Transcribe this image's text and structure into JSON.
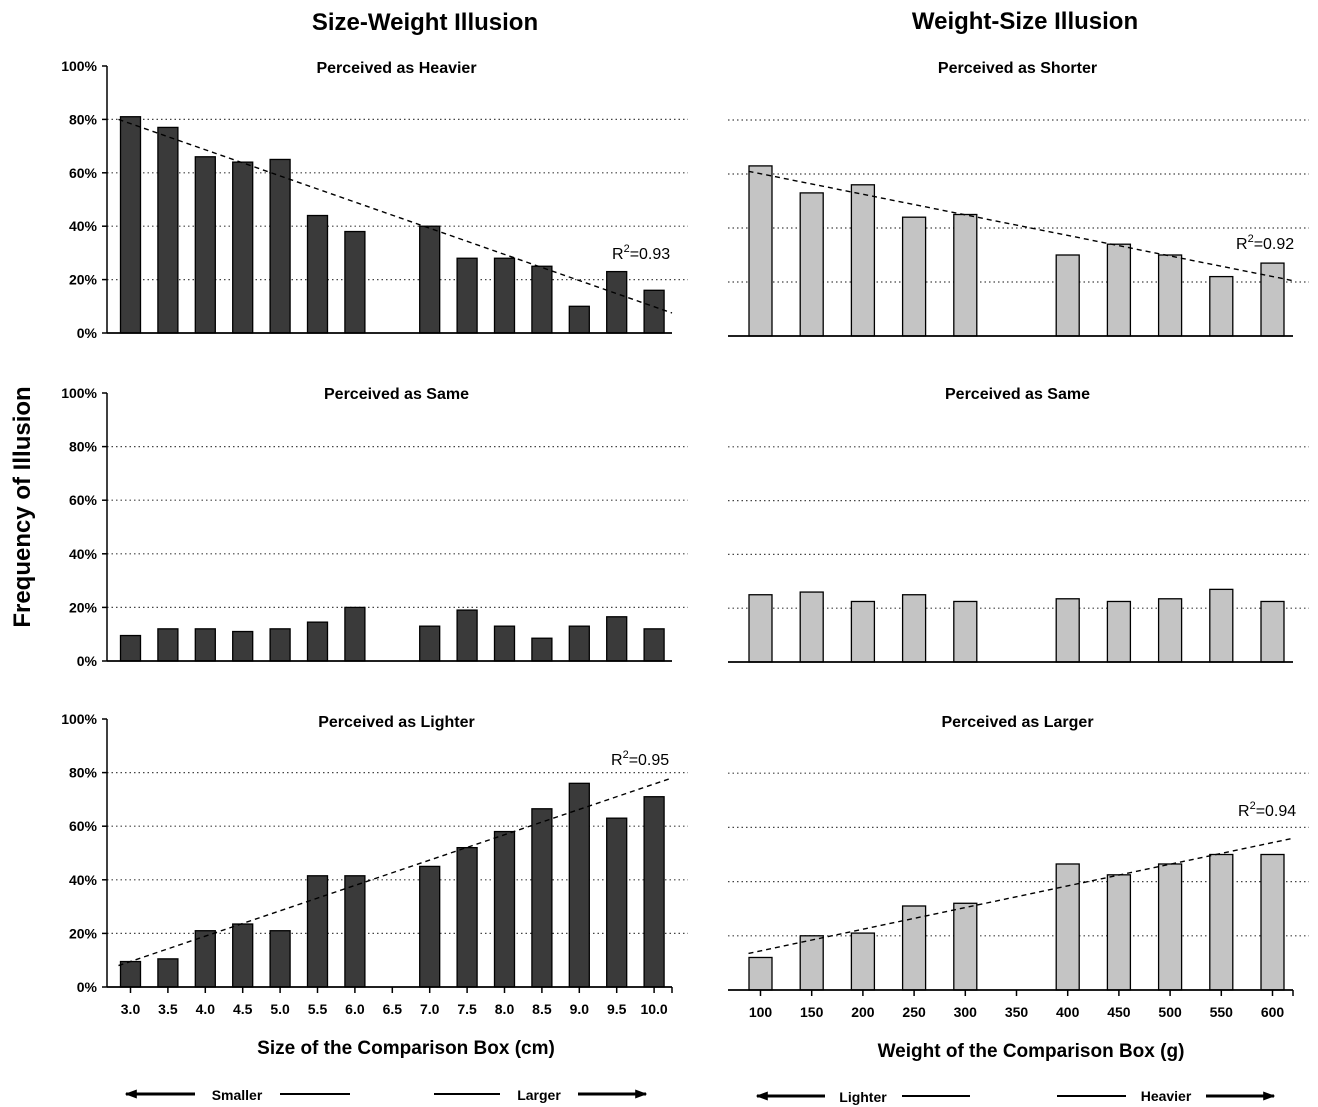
{
  "figure": {
    "ylabel": "Frequency of Illusion",
    "columns": [
      {
        "title": "Size-Weight Illusion",
        "xlabel": "Size of the Comparison Box (cm)",
        "arrow_left_label": "Smaller",
        "arrow_right_label": "Larger"
      },
      {
        "title": "Weight-Size Illusion",
        "xlabel": "Weight of the Comparison Box (g)",
        "arrow_left_label": "Lighter",
        "arrow_right_label": "Heavier"
      }
    ],
    "colors": {
      "dark_bar": "#3a3a3a",
      "light_bar": "#c4c4c4",
      "bar_stroke": "#000000"
    }
  },
  "chart_data": [
    {
      "type": "bar",
      "title": "Perceived as Heavier",
      "categories": [
        "3.0",
        "3.5",
        "4.0",
        "4.5",
        "5.0",
        "5.5",
        "6.0",
        "6.5",
        "7.0",
        "7.5",
        "8.0",
        "8.5",
        "9.0",
        "9.5",
        "10.0"
      ],
      "values": [
        81,
        77,
        66,
        64,
        65,
        44,
        38,
        null,
        40,
        28,
        28,
        25,
        10,
        23,
        16
      ],
      "ylim": [
        0,
        100
      ],
      "yticks": [
        "0%",
        "20%",
        "40%",
        "60%",
        "80%",
        "100%"
      ],
      "trend": {
        "start": 80,
        "end": 7.5,
        "r2_label": "R",
        "r2_value": "=0.93"
      },
      "grid": true,
      "bar_color": "dark"
    },
    {
      "type": "bar",
      "title": "Perceived as Shorter",
      "categories": [
        "100",
        "150",
        "200",
        "250",
        "300",
        "350",
        "400",
        "450",
        "500",
        "550",
        "600"
      ],
      "values": [
        63,
        53,
        56,
        44,
        45,
        null,
        30,
        34,
        30,
        22,
        27
      ],
      "ylim": [
        0,
        100
      ],
      "yticks": [],
      "trend": {
        "start": 61,
        "end": 20.5,
        "r2_label": "R",
        "r2_value": "=0.92"
      },
      "grid": true,
      "bar_color": "light"
    },
    {
      "type": "bar",
      "title": "Perceived as Same",
      "categories": [
        "3.0",
        "3.5",
        "4.0",
        "4.5",
        "5.0",
        "5.5",
        "6.0",
        "6.5",
        "7.0",
        "7.5",
        "8.0",
        "8.5",
        "9.0",
        "9.5",
        "10.0"
      ],
      "values": [
        9.5,
        12,
        12,
        11,
        12,
        14.5,
        20,
        null,
        13,
        19,
        13,
        8.5,
        13,
        16.5,
        12
      ],
      "ylim": [
        0,
        100
      ],
      "yticks": [
        "0%",
        "20%",
        "40%",
        "60%",
        "80%",
        "100%"
      ],
      "trend": null,
      "grid": true,
      "bar_color": "dark"
    },
    {
      "type": "bar",
      "title": "Perceived as Same",
      "categories": [
        "100",
        "150",
        "200",
        "250",
        "300",
        "350",
        "400",
        "450",
        "500",
        "550",
        "600"
      ],
      "values": [
        25,
        26,
        22.5,
        25,
        22.5,
        null,
        23.5,
        22.5,
        23.5,
        27,
        22.5
      ],
      "ylim": [
        0,
        100
      ],
      "yticks": [],
      "trend": null,
      "grid": true,
      "bar_color": "light"
    },
    {
      "type": "bar",
      "title": "Perceived as Lighter",
      "categories": [
        "3.0",
        "3.5",
        "4.0",
        "4.5",
        "5.0",
        "5.5",
        "6.0",
        "6.5",
        "7.0",
        "7.5",
        "8.0",
        "8.5",
        "9.0",
        "9.5",
        "10.0"
      ],
      "values": [
        9.5,
        10.5,
        21,
        23.5,
        21,
        41.5,
        41.5,
        null,
        45,
        52,
        58,
        66.5,
        76,
        63,
        71
      ],
      "ylim": [
        0,
        100
      ],
      "yticks": [
        "0%",
        "20%",
        "40%",
        "60%",
        "80%",
        "100%"
      ],
      "trend": {
        "start": 8,
        "end": 78,
        "r2_label": "R",
        "r2_value": "=0.95"
      },
      "grid": true,
      "bar_color": "dark"
    },
    {
      "type": "bar",
      "title": "Perceived as Larger",
      "categories": [
        "100",
        "150",
        "200",
        "250",
        "300",
        "350",
        "400",
        "450",
        "500",
        "550",
        "600"
      ],
      "values": [
        12,
        20,
        21,
        31,
        32,
        null,
        46.5,
        42.5,
        46.5,
        50,
        50
      ],
      "ylim": [
        0,
        100
      ],
      "yticks": [],
      "trend": {
        "start": 13.5,
        "end": 56,
        "r2_label": "R",
        "r2_value": "=0.94"
      },
      "grid": true,
      "bar_color": "light"
    }
  ]
}
